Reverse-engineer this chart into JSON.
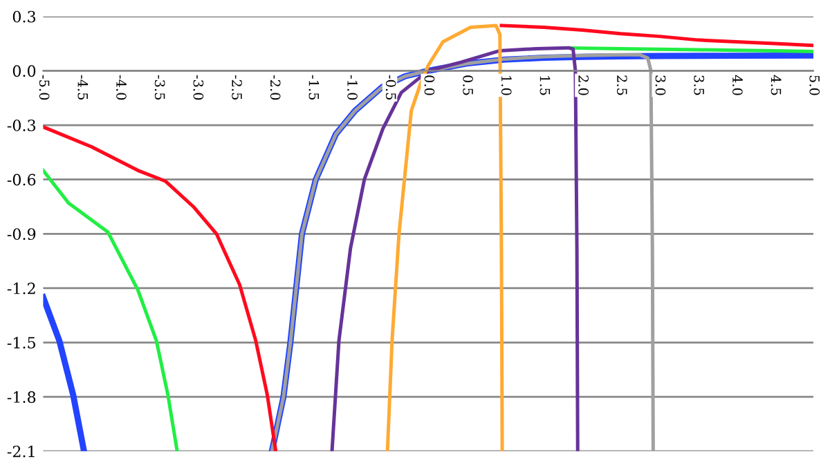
{
  "chart_data": {
    "type": "line",
    "xlim": [
      -5,
      5
    ],
    "ylim": [
      -2.1,
      0.3
    ],
    "xticks": [
      {
        "value": -5,
        "label": "-5.0"
      },
      {
        "value": -4.5,
        "label": "-4.5"
      },
      {
        "value": -4,
        "label": "-4.0"
      },
      {
        "value": -3.5,
        "label": "-3.5"
      },
      {
        "value": -3,
        "label": "-3.0"
      },
      {
        "value": -2.5,
        "label": "-2.5"
      },
      {
        "value": -2,
        "label": "-2.0"
      },
      {
        "value": -1.5,
        "label": "-1.5"
      },
      {
        "value": -1,
        "label": "-1.0"
      },
      {
        "value": -0.5,
        "label": "-0.5"
      },
      {
        "value": 0,
        "label": "0.0"
      },
      {
        "value": 0.5,
        "label": "0.5"
      },
      {
        "value": 1,
        "label": "1.0"
      },
      {
        "value": 1.5,
        "label": "1.5"
      },
      {
        "value": 2,
        "label": "2.0"
      },
      {
        "value": 2.5,
        "label": "2.5"
      },
      {
        "value": 3,
        "label": "3.0"
      },
      {
        "value": 3.5,
        "label": "3.5"
      },
      {
        "value": 4,
        "label": "4.0"
      },
      {
        "value": 4.5,
        "label": "4.5"
      },
      {
        "value": 5,
        "label": "5.0"
      }
    ],
    "yticks": [
      {
        "value": 0.3,
        "label": "0.3"
      },
      {
        "value": 0,
        "label": "0.0"
      },
      {
        "value": -0.3,
        "label": "-0.3"
      },
      {
        "value": -0.6,
        "label": "-0.6"
      },
      {
        "value": -0.9,
        "label": "-0.9"
      },
      {
        "value": -1.2,
        "label": "-1.2"
      },
      {
        "value": -1.5,
        "label": "-1.5"
      },
      {
        "value": -1.8,
        "label": "-1.8"
      },
      {
        "value": -2.1,
        "label": "-2.1"
      }
    ],
    "grid": "y",
    "legend": false,
    "marker": "none",
    "line_style": "solid",
    "series": [
      {
        "color": "#2244ff",
        "x": [
          -5,
          -4.79,
          -4.61,
          -4.47,
          null,
          -2.03,
          -1.88,
          -1.79,
          -1.64,
          -1.46,
          -1.2,
          -0.95,
          -0.6,
          -0.3,
          0,
          0.5,
          1,
          1.5,
          2,
          2.5,
          3,
          4,
          5
        ],
        "values": [
          -1.25,
          -1.49,
          -1.79,
          -2.1,
          null,
          -2.1,
          -1.8,
          -1.5,
          -0.9,
          -0.6,
          -0.35,
          -0.22,
          -0.09,
          -0.03,
          0,
          0.04,
          0.062,
          0.072,
          0.077,
          0.08,
          0.082,
          0.083,
          0.084
        ]
      },
      {
        "color": "#a0a0a0",
        "x": [
          -2.03,
          -1.88,
          -1.79,
          -1.64,
          -1.46,
          -1.2,
          -0.95,
          -0.6,
          -0.3,
          0,
          0.5,
          1,
          1.5,
          2,
          2.5,
          2.75,
          2.85,
          2.89,
          2.91,
          2.92
        ],
        "values": [
          -2.1,
          -1.8,
          -1.5,
          -0.9,
          -0.6,
          -0.35,
          -0.22,
          -0.09,
          -0.03,
          0,
          0.04,
          0.065,
          0.078,
          0.085,
          0.088,
          0.088,
          0.07,
          0,
          -1,
          -2.1
        ]
      },
      {
        "color": "#ff0a1e",
        "x": [
          -5,
          -4.37,
          -3.77,
          -3.41,
          -3.05,
          -2.75,
          -2.45,
          -2.24,
          -2.09,
          -1.98,
          null,
          0.95,
          1.5,
          2,
          2.5,
          3,
          3.5,
          4,
          4.5,
          5
        ],
        "values": [
          -0.31,
          -0.42,
          -0.55,
          -0.61,
          -0.75,
          -0.9,
          -1.18,
          -1.49,
          -1.79,
          -2.1,
          null,
          0.25,
          0.24,
          0.225,
          0.205,
          0.19,
          0.17,
          0.16,
          0.15,
          0.14
        ]
      },
      {
        "color": "#22ee44",
        "x": [
          -5,
          -4.67,
          -4.16,
          -3.77,
          -3.53,
          -3.38,
          -3.26,
          null,
          1.85,
          2.5,
          3,
          3.5,
          4,
          4.5,
          5
        ],
        "values": [
          -0.55,
          -0.73,
          -0.89,
          -1.21,
          -1.49,
          -1.79,
          -2.1,
          null,
          0.126,
          0.122,
          0.119,
          0.116,
          0.113,
          0.11,
          0.107
        ]
      },
      {
        "color": "#663399",
        "x": [
          -1.25,
          -1.16,
          -1.01,
          -0.83,
          -0.59,
          -0.35,
          0,
          0.43,
          0.92,
          1.4,
          1.82,
          1.88,
          1.91,
          1.93,
          1.94
        ],
        "values": [
          -2.1,
          -1.49,
          -0.98,
          -0.6,
          -0.32,
          -0.12,
          0,
          0.048,
          0.11,
          0.122,
          0.127,
          0.12,
          0,
          -1,
          -2.1
        ]
      },
      {
        "color": "#ffaa33",
        "x": [
          -0.53,
          -0.47,
          -0.38,
          -0.22,
          -0.1,
          0,
          0.19,
          0.55,
          0.88,
          0.93,
          0.95,
          0.96
        ],
        "values": [
          -2.1,
          -1.49,
          -0.9,
          -0.22,
          -0.07,
          0.03,
          0.16,
          0.24,
          0.25,
          0.2,
          -1,
          -2.1
        ]
      }
    ]
  }
}
